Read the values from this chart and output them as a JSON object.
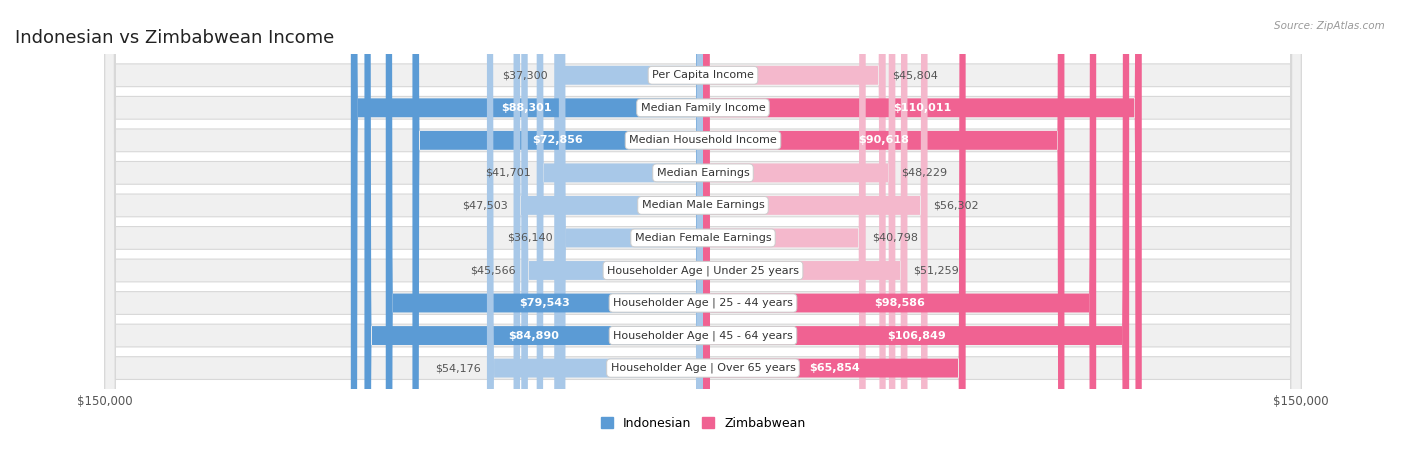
{
  "title": "Indonesian vs Zimbabwean Income",
  "source": "Source: ZipAtlas.com",
  "categories": [
    "Per Capita Income",
    "Median Family Income",
    "Median Household Income",
    "Median Earnings",
    "Median Male Earnings",
    "Median Female Earnings",
    "Householder Age | Under 25 years",
    "Householder Age | 25 - 44 years",
    "Householder Age | 45 - 64 years",
    "Householder Age | Over 65 years"
  ],
  "indonesian": [
    37300,
    88301,
    72856,
    41701,
    47503,
    36140,
    45566,
    79543,
    84890,
    54176
  ],
  "zimbabwean": [
    45804,
    110011,
    90618,
    48229,
    56302,
    40798,
    51259,
    98586,
    106849,
    65854
  ],
  "indonesian_labels": [
    "$37,300",
    "$88,301",
    "$72,856",
    "$41,701",
    "$47,503",
    "$36,140",
    "$45,566",
    "$79,543",
    "$84,890",
    "$54,176"
  ],
  "zimbabwean_labels": [
    "$45,804",
    "$110,011",
    "$90,618",
    "$48,229",
    "$56,302",
    "$40,798",
    "$51,259",
    "$98,586",
    "$106,849",
    "$65,854"
  ],
  "indonesian_color_light": "#a8c8e8",
  "indonesian_color_dark": "#5b9bd5",
  "zimbabwean_color_light": "#f4b8cc",
  "zimbabwean_color_dark": "#f06292",
  "max_val": 150000,
  "row_bg": "#f0f0f0",
  "row_border": "#d8d8d8",
  "bg_color": "#ffffff",
  "label_color_white": "#ffffff",
  "label_color_dark": "#555555",
  "dark_threshold": 65000,
  "title_fontsize": 13,
  "category_fontsize": 8,
  "value_fontsize": 8,
  "legend_fontsize": 9,
  "axis_fontsize": 8.5
}
